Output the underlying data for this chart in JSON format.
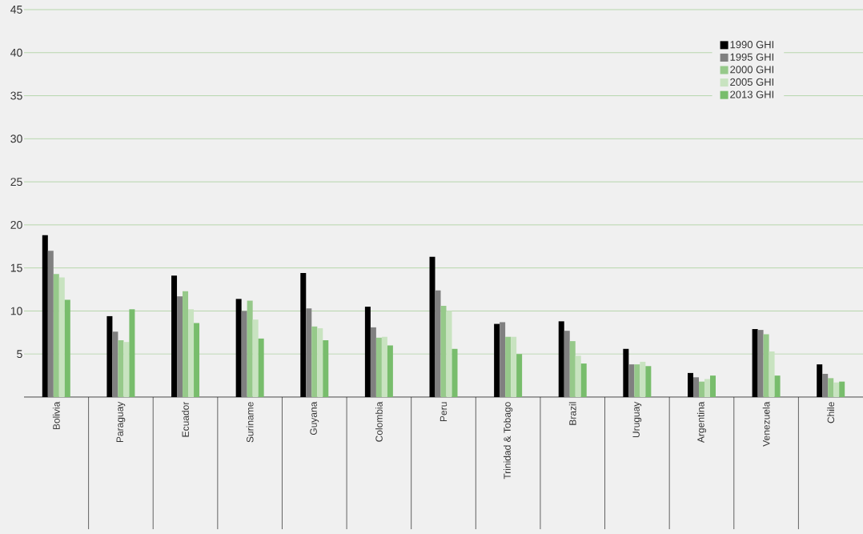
{
  "chart_data": {
    "type": "bar",
    "categories": [
      "Bolivia",
      "Paraguay",
      "Ecuador",
      "Suriname",
      "Guyana",
      "Colombia",
      "Peru",
      "Trinidad & Tobago",
      "Brazil",
      "Uruguay",
      "Argentina",
      "Venezuela",
      "Chile"
    ],
    "series": [
      {
        "name": "1990 GHI",
        "color": "#000000",
        "values": [
          18.8,
          9.4,
          14.1,
          11.4,
          14.4,
          10.5,
          16.3,
          8.5,
          8.8,
          5.6,
          2.8,
          7.9,
          3.8
        ]
      },
      {
        "name": "1995 GHI",
        "color": "#808080",
        "values": [
          17.0,
          7.6,
          11.7,
          10.0,
          10.3,
          8.1,
          12.4,
          8.7,
          7.7,
          3.8,
          2.3,
          7.8,
          2.7
        ]
      },
      {
        "name": "2000 GHI",
        "color": "#96c98a",
        "values": [
          14.3,
          6.6,
          12.3,
          11.2,
          8.2,
          6.9,
          10.6,
          7.0,
          6.5,
          3.8,
          1.8,
          7.3,
          2.2
        ]
      },
      {
        "name": "2005 GHI",
        "color": "#c8e3c0",
        "values": [
          13.9,
          6.4,
          10.2,
          9.0,
          8.0,
          7.0,
          10.0,
          7.0,
          4.8,
          4.1,
          2.1,
          5.3,
          1.7
        ]
      },
      {
        "name": "2013 GHI",
        "color": "#78bd6c",
        "values": [
          11.3,
          10.2,
          8.6,
          6.8,
          6.6,
          6.0,
          5.6,
          5.0,
          3.9,
          3.6,
          2.5,
          2.5,
          1.8
        ]
      }
    ],
    "ylim": [
      0,
      45
    ],
    "yticks": [
      5,
      10,
      15,
      20,
      25,
      30,
      35,
      40,
      45
    ],
    "grid": "y",
    "legend": "top right"
  }
}
